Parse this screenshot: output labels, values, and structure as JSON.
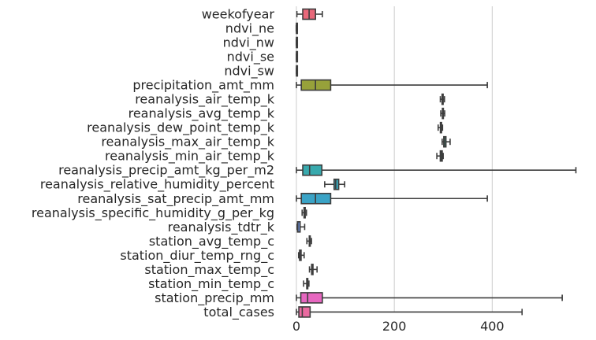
{
  "chart_data": {
    "type": "box",
    "orientation": "horizontal",
    "title": "",
    "xlabel": "",
    "ylabel": "",
    "xlim": [
      -8,
      575
    ],
    "xticks": [
      0,
      200,
      400
    ],
    "grid": "x-major",
    "legend": "none",
    "series": [
      {
        "name": "weekofyear",
        "color": "#e8687a",
        "whisker_low": 1,
        "q1": 13,
        "median": 26,
        "q3": 39,
        "whisker_high": 53
      },
      {
        "name": "ndvi_ne",
        "color": "#dc7a36",
        "whisker_low": -0.4,
        "q1": 0.05,
        "median": 0.13,
        "q3": 0.25,
        "whisker_high": 0.5
      },
      {
        "name": "ndvi_nw",
        "color": "#c98d36",
        "whisker_low": -0.3,
        "q1": 0.08,
        "median": 0.13,
        "q3": 0.25,
        "whisker_high": 0.45
      },
      {
        "name": "ndvi_se",
        "color": "#b39a32",
        "whisker_low": 0.0,
        "q1": 0.16,
        "median": 0.2,
        "q3": 0.25,
        "whisker_high": 0.38
      },
      {
        "name": "ndvi_sw",
        "color": "#a3a034",
        "whisker_low": 0.0,
        "q1": 0.14,
        "median": 0.19,
        "q3": 0.25,
        "whisker_high": 0.4
      },
      {
        "name": "precipitation_amt_mm",
        "color": "#97a13a",
        "whisker_low": 0,
        "q1": 10,
        "median": 39,
        "q3": 70,
        "whisker_high": 390
      },
      {
        "name": "reanalysis_air_temp_k",
        "color": "#6fae35",
        "whisker_low": 294,
        "q1": 297.6,
        "median": 298.6,
        "q3": 299.8,
        "whisker_high": 302.5
      },
      {
        "name": "reanalysis_avg_temp_k",
        "color": "#4bb036",
        "whisker_low": 294.9,
        "q1": 298.3,
        "median": 299.3,
        "q3": 300.2,
        "whisker_high": 303
      },
      {
        "name": "reanalysis_dew_point_temp_k",
        "color": "#33b06d",
        "whisker_low": 289.6,
        "q1": 294.1,
        "median": 295.6,
        "q3": 296.5,
        "whisker_high": 298.5
      },
      {
        "name": "reanalysis_max_air_temp_k",
        "color": "#35ad8f",
        "whisker_low": 297.8,
        "q1": 301,
        "median": 302.4,
        "q3": 305.5,
        "whisker_high": 314
      },
      {
        "name": "reanalysis_min_air_temp_k",
        "color": "#36ab9f",
        "whisker_low": 286.9,
        "q1": 293.9,
        "median": 296.2,
        "q3": 297.9,
        "whisker_high": 299.9
      },
      {
        "name": "reanalysis_precip_amt_kg_per_m2",
        "color": "#38a9ad",
        "whisker_low": 0,
        "q1": 13,
        "median": 27,
        "q3": 52,
        "whisker_high": 571
      },
      {
        "name": "reanalysis_relative_humidity_percent",
        "color": "#39a7b9",
        "whisker_low": 57.8,
        "q1": 77,
        "median": 80.3,
        "q3": 86.4,
        "whisker_high": 98.6
      },
      {
        "name": "reanalysis_sat_precip_amt_mm",
        "color": "#3aa3c6",
        "whisker_low": 0,
        "q1": 10,
        "median": 39,
        "q3": 70,
        "whisker_high": 390
      },
      {
        "name": "reanalysis_specific_humidity_g_per_kg",
        "color": "#48a0d6",
        "whisker_low": 11.7,
        "q1": 15.6,
        "median": 17.1,
        "q3": 17.98,
        "whisker_high": 20.5
      },
      {
        "name": "reanalysis_tdtr_k",
        "color": "#6e95e8",
        "whisker_low": 1.4,
        "q1": 2.3,
        "median": 2.9,
        "q3": 7.6,
        "whisker_high": 16.9
      },
      {
        "name": "station_avg_temp_c",
        "color": "#9b89ea",
        "whisker_low": 21.4,
        "q1": 26.3,
        "median": 27.4,
        "q3": 28.1,
        "whisker_high": 30.8
      },
      {
        "name": "station_diur_temp_rng_c",
        "color": "#bb7fe7",
        "whisker_low": 4.5,
        "q1": 6.5,
        "median": 7.3,
        "q3": 9.6,
        "whisker_high": 15.8
      },
      {
        "name": "station_max_temp_c",
        "color": "#d270e3",
        "whisker_low": 26.7,
        "q1": 31.1,
        "median": 32.8,
        "q3": 33.9,
        "whisker_high": 42.2
      },
      {
        "name": "station_min_temp_c",
        "color": "#e26ad2",
        "whisker_low": 14.7,
        "q1": 21.1,
        "median": 22.2,
        "q3": 23.3,
        "whisker_high": 25.6
      },
      {
        "name": "station_precip_mm",
        "color": "#e767c0",
        "whisker_low": 0,
        "q1": 9,
        "median": 23,
        "q3": 53,
        "whisker_high": 543
      },
      {
        "name": "total_cases",
        "color": "#ea6aa0",
        "whisker_low": 0,
        "q1": 5,
        "median": 12,
        "q3": 28,
        "whisker_high": 461
      }
    ]
  }
}
